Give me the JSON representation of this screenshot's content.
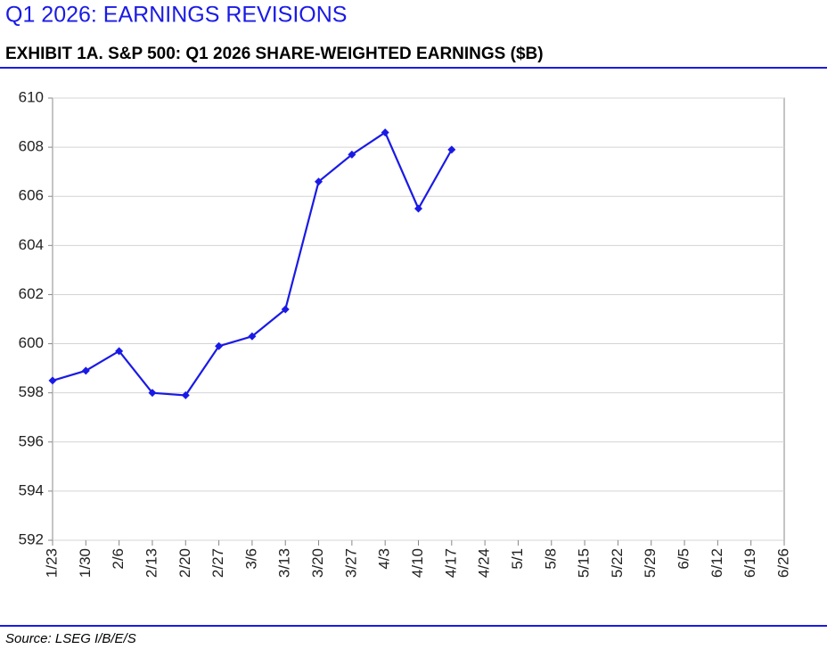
{
  "chart_data": {
    "type": "line",
    "title": "Q1 2026: EARNINGS REVISIONS",
    "subtitle": "EXHIBIT 1A.  S&P 500: Q1 2026 SHARE-WEIGHTED EARNINGS ($B)",
    "source": "Source: LSEG I/B/E/S",
    "categories": [
      "1/23",
      "1/30",
      "2/6",
      "2/13",
      "2/20",
      "2/27",
      "3/6",
      "3/13",
      "3/20",
      "3/27",
      "4/3",
      "4/10",
      "4/17",
      "4/24",
      "5/1",
      "5/8",
      "5/15",
      "5/22",
      "5/29",
      "6/5",
      "6/12",
      "6/19",
      "6/26"
    ],
    "series": [
      {
        "name": "S&P 500 Q1 2026 share-weighted earnings",
        "color": "#1a1ae6",
        "values": [
          598.5,
          598.9,
          599.7,
          598.0,
          597.9,
          599.9,
          600.3,
          601.4,
          606.6,
          607.7,
          608.6,
          605.5,
          607.9,
          null,
          null,
          null,
          null,
          null,
          null,
          null,
          null,
          null,
          null
        ]
      }
    ],
    "ylim": [
      592,
      610
    ],
    "yticks": [
      592,
      594,
      596,
      598,
      600,
      602,
      604,
      606,
      608,
      610
    ],
    "grid": true
  }
}
